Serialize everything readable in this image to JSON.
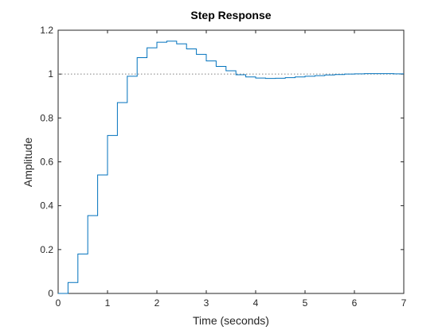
{
  "chart_data": {
    "type": "line",
    "subtype": "step",
    "title": "Step Response",
    "xlabel": "Time (seconds)",
    "ylabel": "Amplitude",
    "xlim": [
      0,
      7
    ],
    "ylim": [
      0,
      1.2
    ],
    "xticks": [
      "0",
      "1",
      "2",
      "3",
      "4",
      "5",
      "6",
      "7"
    ],
    "yticks": [
      "0",
      "0.2",
      "0.4",
      "0.6",
      "0.8",
      "1",
      "1.2"
    ],
    "grid": false,
    "reference_line": {
      "y": 1,
      "style": "dotted",
      "color": "#808080"
    },
    "series": [
      {
        "color": "#0072BD",
        "step": 0.2,
        "x": [
          0,
          0.2,
          0.4,
          0.6,
          0.8,
          1.0,
          1.2,
          1.4,
          1.6,
          1.8,
          2.0,
          2.2,
          2.4,
          2.6,
          2.8,
          3.0,
          3.2,
          3.4,
          3.6,
          3.8,
          4.0,
          4.2,
          4.4,
          4.6,
          4.8,
          5.0,
          5.2,
          5.4,
          5.6,
          5.8,
          6.0,
          6.2,
          6.4,
          6.6,
          6.8,
          7.0
        ],
        "y": [
          0,
          0.05,
          0.18,
          0.355,
          0.54,
          0.72,
          0.87,
          0.99,
          1.075,
          1.12,
          1.145,
          1.15,
          1.138,
          1.115,
          1.09,
          1.06,
          1.035,
          1.015,
          0.997,
          0.987,
          0.982,
          0.98,
          0.981,
          0.984,
          0.987,
          0.99,
          0.993,
          0.996,
          0.998,
          1.0,
          1.001,
          1.002,
          1.002,
          1.002,
          1.001,
          1.001
        ]
      }
    ]
  }
}
